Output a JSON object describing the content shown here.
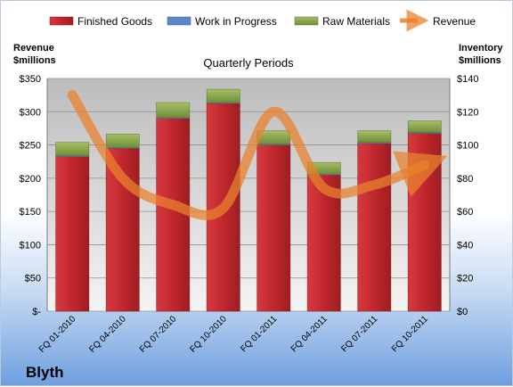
{
  "chart_data": {
    "type": "bar",
    "subtitle": "Quarterly Periods",
    "company": "Blyth",
    "left_axis": {
      "title_line1": "Revenue",
      "title_line2": "$millions",
      "range": [
        0,
        350
      ],
      "tick_values": [
        0,
        50,
        100,
        150,
        200,
        250,
        300,
        350
      ],
      "tick_labels": [
        "$-",
        "$50",
        "$100",
        "$150",
        "$200",
        "$250",
        "$300",
        "$350"
      ]
    },
    "right_axis": {
      "title_line1": "Inventory",
      "title_line2": "$millions",
      "range": [
        0,
        140
      ],
      "tick_values": [
        0,
        20,
        40,
        60,
        80,
        100,
        120,
        140
      ],
      "tick_labels": [
        "$0",
        "$20",
        "$40",
        "$60",
        "$80",
        "$100",
        "$120",
        "$140"
      ]
    },
    "categories": [
      "FQ 01-2010",
      "FQ 04-2010",
      "FQ 07-2010",
      "FQ 10-2010",
      "FQ 01-2011",
      "FQ 04-2011",
      "FQ 07-2011",
      "FQ 10-2011"
    ],
    "series": [
      {
        "name": "Finished Goods",
        "axis": "right",
        "stacked": true,
        "color": "#c0272d",
        "values": [
          93,
          98,
          116,
          125,
          100,
          82,
          101,
          107
        ]
      },
      {
        "name": "Work in Progress",
        "axis": "right",
        "stacked": true,
        "color": "#5b86c8",
        "values": [
          0.5,
          0.5,
          0.5,
          0.5,
          0.5,
          0.5,
          0.5,
          0.5
        ]
      },
      {
        "name": "Raw Materials",
        "axis": "right",
        "stacked": true,
        "color": "#8aa64a",
        "values": [
          8,
          8,
          9,
          8,
          8,
          7,
          7,
          7
        ]
      },
      {
        "name": "Revenue",
        "axis": "left",
        "type": "line",
        "color": "#e8822e",
        "values": [
          325,
          200,
          160,
          155,
          300,
          185,
          190,
          220
        ]
      }
    ],
    "legend_position": "top",
    "grid": true
  }
}
